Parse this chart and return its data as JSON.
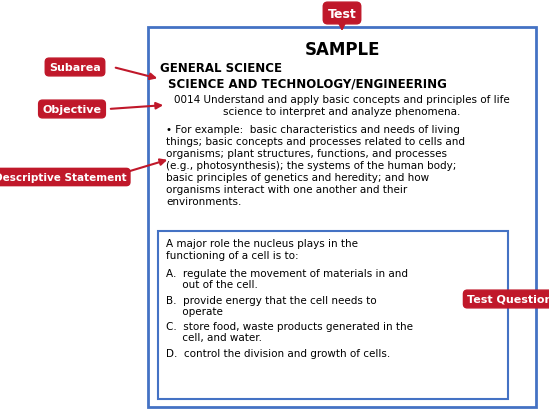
{
  "title": "SAMPLE",
  "subarea_label": "Subarea",
  "objective_label": "Objective",
  "desc_statement_label": "Descriptive Statement",
  "test_label": "Test",
  "test_question_label": "Test Question",
  "general_science": "GENERAL SCIENCE",
  "science_tech": "SCIENCE AND TECHNOLOGY/ENGINEERING",
  "objective_line1": "0014 Understand and apply basic concepts and principles of life",
  "objective_line2": "science to interpret and analyze phenomena.",
  "desc_line1": "• For example:  basic characteristics and needs of living",
  "desc_line2": "things; basic concepts and processes related to cells and",
  "desc_line3": "organisms; plant structures, functions, and processes",
  "desc_line4": "(e.g., photosynthesis); the systems of the human body;",
  "desc_line5": "basic principles of genetics and heredity; and how",
  "desc_line6": "organisms interact with one another and their",
  "desc_line7": "environments.",
  "question_line1": "A major role the nucleus plays in the",
  "question_line2": "functioning of a cell is to:",
  "ans_A_line1": "A.  regulate the movement of materials in and",
  "ans_A_line2": "     out of the cell.",
  "ans_B_line1": "B.  provide energy that the cell needs to",
  "ans_B_line2": "     operate",
  "ans_C_line1": "C.  store food, waste products generated in the",
  "ans_C_line2": "     cell, and water.",
  "ans_D_line1": "D.  control the division and growth of cells.",
  "label_color": "#c0182a",
  "label_text_color": "#ffffff",
  "arrow_color": "#c0182a",
  "outer_box_color": "#4472c4",
  "inner_box_color": "#4472c4",
  "background_color": "#ffffff",
  "text_color": "#000000"
}
